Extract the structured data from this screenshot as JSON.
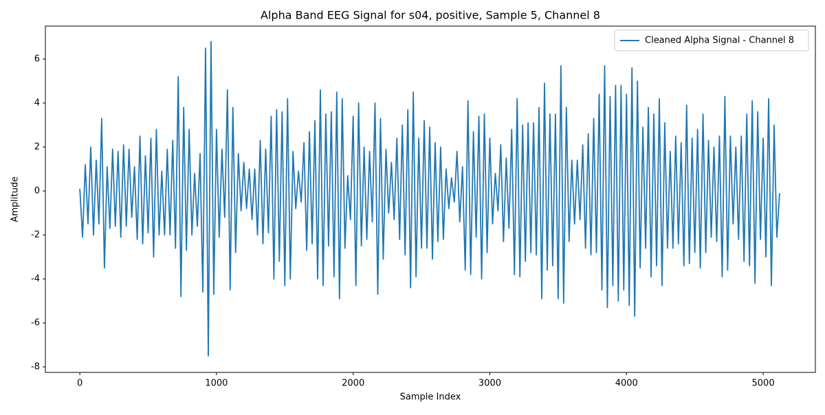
{
  "chart_data": {
    "type": "line",
    "title": "Alpha Band EEG Signal for s04, positive, Sample 5, Channel 8",
    "xlabel": "Sample Index",
    "ylabel": "Amplitude",
    "x": [
      0,
      20,
      40,
      60,
      80,
      100,
      120,
      140,
      160,
      180,
      200,
      220,
      240,
      260,
      280,
      300,
      320,
      340,
      360,
      380,
      400,
      420,
      440,
      460,
      480,
      500,
      520,
      540,
      560,
      580,
      600,
      620,
      640,
      660,
      680,
      700,
      720,
      740,
      760,
      780,
      800,
      820,
      840,
      860,
      880,
      900,
      920,
      940,
      960,
      980,
      1000,
      1020,
      1040,
      1060,
      1080,
      1100,
      1120,
      1140,
      1160,
      1180,
      1200,
      1220,
      1240,
      1260,
      1280,
      1300,
      1320,
      1340,
      1360,
      1380,
      1400,
      1420,
      1440,
      1460,
      1480,
      1500,
      1520,
      1540,
      1560,
      1580,
      1600,
      1620,
      1640,
      1660,
      1680,
      1700,
      1720,
      1740,
      1760,
      1780,
      1800,
      1820,
      1840,
      1860,
      1880,
      1900,
      1920,
      1940,
      1960,
      1980,
      2000,
      2020,
      2040,
      2060,
      2080,
      2100,
      2120,
      2140,
      2160,
      2180,
      2200,
      2220,
      2240,
      2260,
      2280,
      2300,
      2320,
      2340,
      2360,
      2380,
      2400,
      2420,
      2440,
      2460,
      2480,
      2500,
      2520,
      2540,
      2560,
      2580,
      2600,
      2620,
      2640,
      2660,
      2680,
      2700,
      2720,
      2740,
      2760,
      2780,
      2800,
      2820,
      2840,
      2860,
      2880,
      2900,
      2920,
      2940,
      2960,
      2980,
      3000,
      3020,
      3040,
      3060,
      3080,
      3100,
      3120,
      3140,
      3160,
      3180,
      3200,
      3220,
      3240,
      3260,
      3280,
      3300,
      3320,
      3340,
      3360,
      3380,
      3400,
      3420,
      3440,
      3460,
      3480,
      3500,
      3520,
      3540,
      3560,
      3580,
      3600,
      3620,
      3640,
      3660,
      3680,
      3700,
      3720,
      3740,
      3760,
      3780,
      3800,
      3820,
      3840,
      3860,
      3880,
      3900,
      3920,
      3940,
      3960,
      3980,
      4000,
      4020,
      4040,
      4060,
      4080,
      4100,
      4120,
      4140,
      4160,
      4180,
      4200,
      4220,
      4240,
      4260,
      4280,
      4300,
      4320,
      4340,
      4360,
      4380,
      4400,
      4420,
      4440,
      4460,
      4480,
      4500,
      4520,
      4540,
      4560,
      4580,
      4600,
      4620,
      4640,
      4660,
      4680,
      4700,
      4720,
      4740,
      4760,
      4780,
      4800,
      4820,
      4840,
      4860,
      4880,
      4900,
      4920,
      4940,
      4960,
      4980,
      5000,
      5020,
      5040,
      5060,
      5080,
      5100,
      5120
    ],
    "series": [
      {
        "name": "Cleaned Alpha Signal - Channel 8",
        "color": "#1f77b4",
        "values": [
          0.1,
          -2.1,
          1.2,
          -1.5,
          2.0,
          -2.0,
          1.4,
          -1.5,
          3.3,
          -3.5,
          1.1,
          -1.7,
          1.9,
          -1.6,
          1.8,
          -2.1,
          2.1,
          -1.6,
          1.9,
          -1.2,
          1.1,
          -2.2,
          2.5,
          -2.4,
          1.6,
          -1.9,
          2.4,
          -3.0,
          2.8,
          -2.0,
          0.9,
          -2.0,
          1.9,
          -2.0,
          2.3,
          -2.6,
          5.2,
          -4.8,
          3.8,
          -2.7,
          2.8,
          -2.0,
          0.8,
          -1.6,
          1.7,
          -4.6,
          6.5,
          -7.5,
          6.8,
          -4.7,
          2.8,
          -2.1,
          1.9,
          -1.2,
          4.6,
          -4.5,
          3.8,
          -2.8,
          1.7,
          -0.9,
          1.3,
          -0.8,
          1.0,
          -1.3,
          1.0,
          -2.0,
          2.3,
          -2.4,
          1.9,
          -1.9,
          3.4,
          -4.0,
          3.7,
          -3.2,
          3.6,
          -4.3,
          4.2,
          -4.0,
          1.8,
          -0.8,
          0.9,
          -0.5,
          2.2,
          -2.7,
          2.7,
          -2.4,
          3.2,
          -4.0,
          4.6,
          -4.3,
          3.5,
          -2.5,
          3.6,
          -3.9,
          4.5,
          -4.9,
          4.2,
          -2.6,
          0.7,
          -1.3,
          3.4,
          -4.3,
          4.0,
          -2.5,
          2.0,
          -2.2,
          1.8,
          -1.4,
          4.0,
          -4.7,
          3.3,
          -3.1,
          1.9,
          -1.0,
          1.3,
          -1.3,
          2.4,
          -2.2,
          3.0,
          -2.9,
          3.7,
          -4.4,
          4.5,
          -3.9,
          2.4,
          -2.6,
          3.2,
          -2.6,
          2.9,
          -3.1,
          2.2,
          -2.3,
          2.0,
          -2.2,
          1.0,
          -0.8,
          0.6,
          -0.5,
          1.8,
          -1.4,
          1.1,
          -3.6,
          4.1,
          -3.8,
          2.7,
          -2.1,
          3.4,
          -4.0,
          3.5,
          -2.8,
          2.4,
          -1.5,
          0.8,
          -0.9,
          2.1,
          -2.3,
          1.5,
          -1.7,
          2.8,
          -3.8,
          4.2,
          -3.9,
          3.0,
          -3.2,
          3.1,
          -2.8,
          3.1,
          -2.9,
          3.8,
          -4.9,
          4.9,
          -3.6,
          3.5,
          -3.4,
          3.5,
          -4.9,
          5.7,
          -5.1,
          3.8,
          -2.3,
          1.4,
          -1.5,
          1.4,
          -1.3,
          2.1,
          -2.6,
          2.6,
          -2.9,
          3.3,
          -2.8,
          4.4,
          -4.5,
          5.7,
          -5.3,
          4.3,
          -4.3,
          4.8,
          -5.0,
          4.8,
          -4.5,
          4.4,
          -5.2,
          5.6,
          -5.7,
          5.0,
          -3.5,
          2.9,
          -2.6,
          3.8,
          -3.9,
          3.5,
          -3.4,
          4.2,
          -4.3,
          3.1,
          -2.6,
          1.8,
          -2.6,
          2.5,
          -2.4,
          2.2,
          -3.4,
          3.9,
          -3.3,
          2.4,
          -2.8,
          2.8,
          -3.5,
          3.5,
          -2.8,
          2.3,
          -2.1,
          2.0,
          -2.3,
          2.5,
          -3.9,
          4.3,
          -3.6,
          2.5,
          -1.5,
          2.0,
          -2.2,
          2.5,
          -3.2,
          3.5,
          -3.4,
          4.1,
          -4.2,
          3.6,
          -2.2,
          2.4,
          -3.0,
          4.2,
          -4.3,
          3.0,
          -2.1,
          -0.1
        ]
      }
    ],
    "xlim": [
      -252,
      5382
    ],
    "ylim": [
      -8.25,
      7.5
    ],
    "xticks": [
      0,
      1000,
      2000,
      3000,
      4000,
      5000
    ],
    "yticks": [
      -8,
      -6,
      -4,
      -2,
      0,
      2,
      4,
      6
    ],
    "legend": "upper right",
    "grid": false
  }
}
